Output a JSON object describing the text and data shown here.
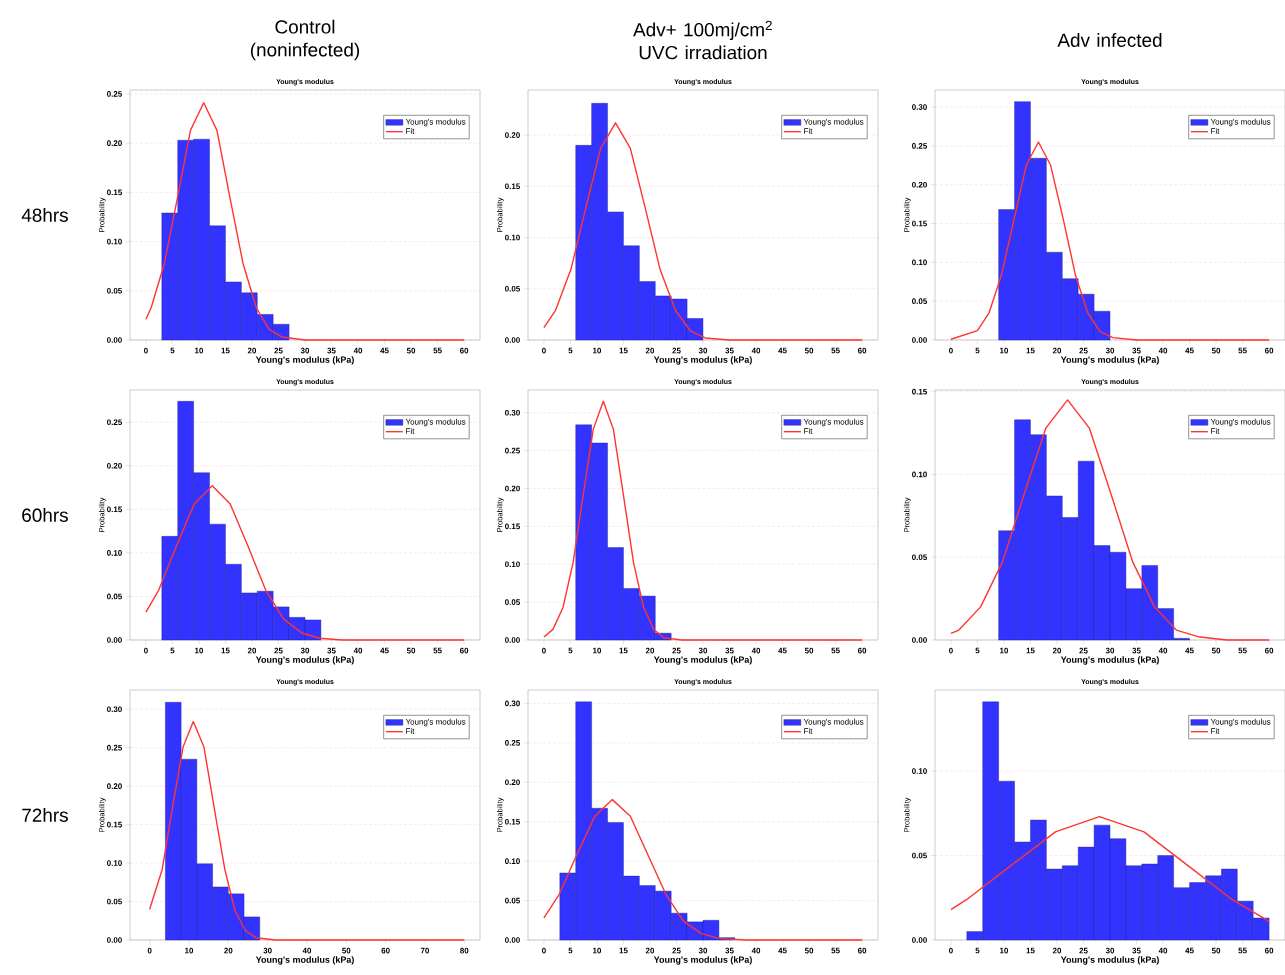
{
  "chart_data": [
    {
      "type": "histogram",
      "title": "Young's modulus",
      "xlabel": "Young's modulus (kPa)",
      "ylabel": "Probability",
      "annotations": [
        "Control (noninfected)",
        "48hrs"
      ],
      "xlim": [
        -3,
        63
      ],
      "ylim": [
        0,
        0.254
      ],
      "xticks": [
        0,
        5,
        10,
        15,
        20,
        25,
        30,
        35,
        40,
        45,
        50,
        55,
        60
      ],
      "yticks": [
        {
          "value": 0,
          "label": "0.00"
        },
        {
          "value": 0.05,
          "label": "0.05"
        },
        {
          "value": 0.1,
          "label": "0.10"
        },
        {
          "value": 0.15,
          "label": "0.15"
        },
        {
          "value": 0.2,
          "label": "0.20"
        },
        {
          "value": 0.25,
          "label": "0.25"
        }
      ],
      "grid": "y",
      "legend": "top right",
      "series": [
        {
          "name": "Young's modulus",
          "type": "histogram",
          "color": "#3333ff",
          "bins": [
            3,
            6,
            9,
            12,
            15,
            18,
            21,
            24,
            27
          ],
          "values": [
            0.129,
            0.203,
            0.204,
            0.116,
            0.059,
            0.048,
            0.026,
            0.016
          ]
        },
        {
          "name": "Fit",
          "type": "line",
          "color": "#ff3333",
          "x": [
            0,
            1.0,
            3.5,
            6.0,
            8.4,
            10.9,
            13.4,
            15.8,
            18.3,
            20.8,
            23.2,
            25.7,
            30,
            60
          ],
          "values": [
            0.021,
            0.033,
            0.078,
            0.146,
            0.213,
            0.241,
            0.213,
            0.146,
            0.078,
            0.033,
            0.011,
            0.003,
            0,
            0
          ]
        }
      ]
    },
    {
      "type": "histogram",
      "title": "Young's modulus",
      "xlabel": "Young's modulus (kPa)",
      "ylabel": "Probability",
      "annotations": [
        "Adv+ 100mj/cm$^{2}$ UVC irradiation"
      ],
      "xlim": [
        -3,
        63
      ],
      "ylim": [
        0,
        0.244
      ],
      "xticks": [
        0,
        5,
        10,
        15,
        20,
        25,
        30,
        35,
        40,
        45,
        50,
        55,
        60
      ],
      "yticks": [
        {
          "value": 0,
          "label": "0.00"
        },
        {
          "value": 0.05,
          "label": "0.05"
        },
        {
          "value": 0.1,
          "label": "0.10"
        },
        {
          "value": 0.15,
          "label": "0.15"
        },
        {
          "value": 0.2,
          "label": "0.20"
        }
      ],
      "grid": "y",
      "legend": "top right",
      "series": [
        {
          "name": "Young's modulus",
          "type": "histogram",
          "color": "#3333ff",
          "bins": [
            6,
            9,
            12,
            15,
            18,
            21,
            24,
            27,
            30
          ],
          "values": [
            0.19,
            0.231,
            0.125,
            0.092,
            0.057,
            0.043,
            0.04,
            0.021
          ]
        },
        {
          "name": "Fit",
          "type": "line",
          "color": "#ff3333",
          "x": [
            0,
            2.2,
            5.1,
            7.9,
            10.7,
            13.5,
            16.3,
            19.1,
            21.9,
            24.8,
            27.6,
            30.4,
            35,
            60
          ],
          "values": [
            0.012,
            0.029,
            0.069,
            0.129,
            0.187,
            0.212,
            0.187,
            0.129,
            0.069,
            0.029,
            0.009,
            0.002,
            0,
            0
          ]
        }
      ]
    },
    {
      "type": "histogram",
      "title": "Young's modulus",
      "xlabel": "Young's modulus (kPa)",
      "ylabel": "Probability",
      "annotations": [
        "Adv infected"
      ],
      "xlim": [
        -3,
        63
      ],
      "ylim": [
        0,
        0.322
      ],
      "xticks": [
        0,
        5,
        10,
        15,
        20,
        25,
        30,
        35,
        40,
        45,
        50,
        55,
        60
      ],
      "yticks": [
        {
          "value": 0,
          "label": "0.00"
        },
        {
          "value": 0.05,
          "label": "0.05"
        },
        {
          "value": 0.1,
          "label": "0.10"
        },
        {
          "value": 0.15,
          "label": "0.15"
        },
        {
          "value": 0.2,
          "label": "0.20"
        },
        {
          "value": 0.25,
          "label": "0.25"
        },
        {
          "value": 0.3,
          "label": "0.30"
        }
      ],
      "grid": "y",
      "legend": "top right",
      "series": [
        {
          "name": "Young's modulus",
          "type": "histogram",
          "color": "#3333ff",
          "bins": [
            9,
            12,
            15,
            18,
            21,
            24,
            27,
            30
          ],
          "values": [
            0.168,
            0.307,
            0.234,
            0.113,
            0.079,
            0.059,
            0.037
          ]
        },
        {
          "name": "Fit",
          "type": "line",
          "color": "#ff3333",
          "x": [
            0,
            5,
            7.2,
            9.5,
            11.9,
            14.2,
            16.5,
            18.8,
            21.2,
            23.5,
            25.8,
            28.1,
            30.5,
            35,
            60
          ],
          "values": [
            0.001,
            0.012,
            0.035,
            0.083,
            0.155,
            0.225,
            0.255,
            0.225,
            0.155,
            0.083,
            0.035,
            0.011,
            0.003,
            0,
            0
          ]
        }
      ]
    },
    {
      "type": "histogram",
      "title": "Young's modulus",
      "xlabel": "Young's modulus (kPa)",
      "ylabel": "Probability",
      "annotations": [
        "60hrs"
      ],
      "xlim": [
        -3,
        63
      ],
      "ylim": [
        0,
        0.287
      ],
      "xticks": [
        0,
        5,
        10,
        15,
        20,
        25,
        30,
        35,
        40,
        45,
        50,
        55,
        60
      ],
      "yticks": [
        {
          "value": 0,
          "label": "0.00"
        },
        {
          "value": 0.05,
          "label": "0.05"
        },
        {
          "value": 0.1,
          "label": "0.10"
        },
        {
          "value": 0.15,
          "label": "0.15"
        },
        {
          "value": 0.2,
          "label": "0.20"
        },
        {
          "value": 0.25,
          "label": "0.25"
        }
      ],
      "grid": "y",
      "legend": "top right",
      "series": [
        {
          "name": "Young's modulus",
          "type": "histogram",
          "color": "#3333ff",
          "bins": [
            3,
            6,
            9,
            12,
            15,
            18,
            21,
            24,
            27,
            30,
            33
          ],
          "values": [
            0.119,
            0.274,
            0.192,
            0.133,
            0.087,
            0.054,
            0.056,
            0.038,
            0.026,
            0.023
          ]
        },
        {
          "name": "Fit",
          "type": "line",
          "color": "#ff3333",
          "x": [
            0,
            2.4,
            5.7,
            9.1,
            12.5,
            15.9,
            19.3,
            22.6,
            26,
            29.4,
            32.8,
            37,
            60
          ],
          "values": [
            0.032,
            0.057,
            0.107,
            0.156,
            0.177,
            0.156,
            0.107,
            0.057,
            0.024,
            0.008,
            0.002,
            0,
            0
          ]
        }
      ]
    },
    {
      "type": "histogram",
      "title": "Young's modulus",
      "xlabel": "Young's modulus (kPa)",
      "ylabel": "Probability",
      "xlim": [
        -3,
        63
      ],
      "ylim": [
        0,
        0.33
      ],
      "xticks": [
        0,
        5,
        10,
        15,
        20,
        25,
        30,
        35,
        40,
        45,
        50,
        55,
        60
      ],
      "yticks": [
        {
          "value": 0,
          "label": "0.00"
        },
        {
          "value": 0.05,
          "label": "0.05"
        },
        {
          "value": 0.1,
          "label": "0.10"
        },
        {
          "value": 0.15,
          "label": "0.15"
        },
        {
          "value": 0.2,
          "label": "0.20"
        },
        {
          "value": 0.25,
          "label": "0.25"
        },
        {
          "value": 0.3,
          "label": "0.30"
        }
      ],
      "grid": "y",
      "legend": "top right",
      "series": [
        {
          "name": "Young's modulus",
          "type": "histogram",
          "color": "#3333ff",
          "bins": [
            6,
            9,
            12,
            15,
            18,
            21,
            24
          ],
          "values": [
            0.284,
            0.26,
            0.122,
            0.068,
            0.058,
            0.009
          ]
        },
        {
          "name": "Fit",
          "type": "line",
          "color": "#ff3333",
          "x": [
            0,
            1.7,
            3.6,
            5.5,
            7.4,
            9.3,
            11.2,
            13.1,
            15,
            16.9,
            18.8,
            20.7,
            22.6,
            26,
            60
          ],
          "values": [
            0.004,
            0.014,
            0.043,
            0.102,
            0.191,
            0.278,
            0.315,
            0.278,
            0.191,
            0.102,
            0.043,
            0.014,
            0.003,
            0,
            0
          ]
        }
      ]
    },
    {
      "type": "histogram",
      "title": "Young's modulus",
      "xlabel": "Young's modulus (kPa)",
      "ylabel": "Probability",
      "xlim": [
        -3,
        63
      ],
      "ylim": [
        0,
        0.151
      ],
      "xticks": [
        0,
        5,
        10,
        15,
        20,
        25,
        30,
        35,
        40,
        45,
        50,
        55,
        60
      ],
      "yticks": [
        {
          "value": 0,
          "label": "0.00"
        },
        {
          "value": 0.05,
          "label": "0.05"
        },
        {
          "value": 0.1,
          "label": "0.10"
        },
        {
          "value": 0.15,
          "label": "0.15"
        }
      ],
      "grid": "y",
      "legend": "top right",
      "series": [
        {
          "name": "Young's modulus",
          "type": "histogram",
          "color": "#3333ff",
          "bins": [
            9,
            12,
            15,
            18,
            21,
            24,
            27,
            30,
            33,
            36,
            39,
            42,
            45
          ],
          "values": [
            0.066,
            0.133,
            0.124,
            0.087,
            0.074,
            0.108,
            0.057,
            0.053,
            0.031,
            0.045,
            0.019,
            0.001
          ]
        },
        {
          "name": "Fit",
          "type": "line",
          "color": "#ff3333",
          "x": [
            0,
            1.5,
            5.6,
            9.7,
            13.8,
            17.9,
            22,
            26.1,
            30.2,
            34.3,
            38.4,
            42.5,
            46.6,
            52,
            60
          ],
          "values": [
            0.004,
            0.006,
            0.02,
            0.047,
            0.088,
            0.128,
            0.145,
            0.128,
            0.088,
            0.047,
            0.02,
            0.006,
            0.002,
            0,
            0
          ]
        }
      ]
    },
    {
      "type": "histogram",
      "title": "Young's modulus",
      "xlabel": "Young's modulus (kPa)",
      "ylabel": "Probability",
      "annotations": [
        "72hrs"
      ],
      "xlim": [
        -5,
        84
      ],
      "ylim": [
        0,
        0.325
      ],
      "xticks": [
        0,
        10,
        20,
        30,
        40,
        50,
        60,
        70,
        80
      ],
      "yticks": [
        {
          "value": 0,
          "label": "0.00"
        },
        {
          "value": 0.05,
          "label": "0.05"
        },
        {
          "value": 0.1,
          "label": "0.10"
        },
        {
          "value": 0.15,
          "label": "0.15"
        },
        {
          "value": 0.2,
          "label": "0.20"
        },
        {
          "value": 0.25,
          "label": "0.25"
        },
        {
          "value": 0.3,
          "label": "0.30"
        }
      ],
      "grid": "y",
      "legend": "top right",
      "series": [
        {
          "name": "Young's modulus",
          "type": "histogram",
          "color": "#3333ff",
          "bins": [
            4,
            8,
            12,
            16,
            20,
            24,
            28
          ],
          "values": [
            0.309,
            0.235,
            0.099,
            0.069,
            0.06,
            0.03
          ]
        },
        {
          "name": "Fit",
          "type": "line",
          "color": "#ff3333",
          "x": [
            0,
            3.2,
            5.8,
            8.5,
            11.1,
            13.8,
            16.4,
            19.1,
            21.7,
            24.4,
            27,
            32,
            80
          ],
          "values": [
            0.04,
            0.092,
            0.172,
            0.251,
            0.284,
            0.251,
            0.172,
            0.092,
            0.038,
            0.012,
            0.003,
            0,
            0
          ]
        }
      ]
    },
    {
      "type": "histogram",
      "title": "Young's modulus",
      "xlabel": "Young's modulus (kPa)",
      "ylabel": "Probability",
      "xlim": [
        -3,
        63
      ],
      "ylim": [
        0,
        0.317
      ],
      "xticks": [
        0,
        5,
        10,
        15,
        20,
        25,
        30,
        35,
        40,
        45,
        50,
        55,
        60
      ],
      "yticks": [
        {
          "value": 0,
          "label": "0.00"
        },
        {
          "value": 0.05,
          "label": "0.05"
        },
        {
          "value": 0.1,
          "label": "0.10"
        },
        {
          "value": 0.15,
          "label": "0.15"
        },
        {
          "value": 0.2,
          "label": "0.20"
        },
        {
          "value": 0.25,
          "label": "0.25"
        },
        {
          "value": 0.3,
          "label": "0.30"
        }
      ],
      "grid": "y",
      "legend": "top right",
      "series": [
        {
          "name": "Young's modulus",
          "type": "histogram",
          "color": "#3333ff",
          "bins": [
            3,
            6,
            9,
            12,
            15,
            18,
            21,
            24,
            27,
            30,
            33,
            36
          ],
          "values": [
            0.085,
            0.302,
            0.167,
            0.149,
            0.081,
            0.069,
            0.062,
            0.034,
            0.023,
            0.025,
            0.003
          ]
        },
        {
          "name": "Fit",
          "type": "line",
          "color": "#ff3333",
          "x": [
            0,
            2.9,
            6.2,
            9.6,
            12.9,
            16.3,
            19.6,
            23,
            26.3,
            29.7,
            33,
            38,
            60
          ],
          "values": [
            0.028,
            0.058,
            0.108,
            0.157,
            0.178,
            0.157,
            0.108,
            0.058,
            0.024,
            0.008,
            0.002,
            0,
            0
          ]
        }
      ]
    },
    {
      "type": "histogram",
      "title": "Young's modulus",
      "xlabel": "Young's modulus (kPa)",
      "ylabel": "Probability",
      "xlim": [
        -3,
        63
      ],
      "ylim": [
        0,
        0.148
      ],
      "xticks": [
        0,
        5,
        10,
        15,
        20,
        25,
        30,
        35,
        40,
        45,
        50,
        55,
        60
      ],
      "yticks": [
        {
          "value": 0,
          "label": "0.00"
        },
        {
          "value": 0.05,
          "label": "0.05"
        },
        {
          "value": 0.1,
          "label": "0.10"
        }
      ],
      "grid": "y",
      "legend": "top right",
      "series": [
        {
          "name": "Young's modulus",
          "type": "histogram",
          "color": "#3333ff",
          "bins": [
            3,
            6,
            9,
            12,
            15,
            18,
            21,
            24,
            27,
            30,
            33,
            36,
            39,
            42,
            45,
            48,
            51,
            54,
            57,
            60
          ],
          "values": [
            0.005,
            0.141,
            0.094,
            0.058,
            0.071,
            0.042,
            0.044,
            0.055,
            0.068,
            0.06,
            0.044,
            0.045,
            0.05,
            0.031,
            0.034,
            0.038,
            0.042,
            0.023,
            0.013
          ]
        },
        {
          "name": "Fit",
          "type": "line",
          "color": "#ff3333",
          "x": [
            0,
            3,
            11.3,
            19.7,
            28,
            36.4,
            44.7,
            53,
            60
          ],
          "values": [
            0.018,
            0.024,
            0.044,
            0.064,
            0.073,
            0.064,
            0.044,
            0.024,
            0.011
          ]
        }
      ]
    }
  ]
}
